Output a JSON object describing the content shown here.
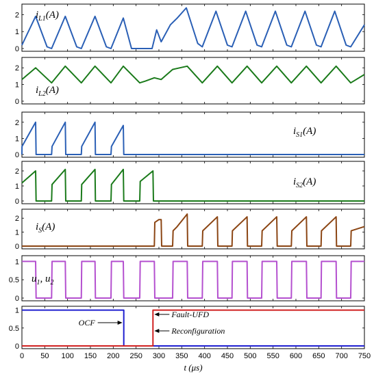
{
  "chart_data": {
    "type": "line",
    "xlabel": "t (μs)",
    "xlim": [
      0,
      750
    ],
    "x_ticks": [
      "0",
      "50",
      "100",
      "150",
      "200",
      "250",
      "300",
      "350",
      "400",
      "450",
      "500",
      "550",
      "600",
      "650",
      "700",
      "750"
    ],
    "colors": {
      "blue": "#2a5fb5",
      "green": "#1a7a1a",
      "brown": "#8b4513",
      "purple": "#b44fcf",
      "navy": "#1f1fd0",
      "red": "#d02020"
    },
    "panels": [
      {
        "label": "i_L1(A)",
        "label_main": "i",
        "label_sub": "L1",
        "label_suffix": "(A)",
        "ylim": [
          0,
          2.5
        ],
        "y_ticks": [
          0,
          1,
          2
        ],
        "series": [
          {
            "color": "blue",
            "x": [
              0,
              30,
              55,
              65,
              95,
              120,
              130,
              160,
              185,
              195,
              222,
              240,
              260,
              285,
              295,
              305,
              325,
              340,
              360,
              385,
              395,
              425,
              450,
              460,
              490,
              515,
              525,
              555,
              580,
              590,
              620,
              645,
              655,
              685,
              710,
              720,
              750
            ],
            "y": [
              0.2,
              1.9,
              0.1,
              0,
              1.9,
              0.1,
              0,
              1.9,
              0.1,
              0,
              1.8,
              0,
              0,
              0,
              1.1,
              0.4,
              1.4,
              1.8,
              2.4,
              0.3,
              0.1,
              2.2,
              0.2,
              0.1,
              2.2,
              0.2,
              0.1,
              2.2,
              0.2,
              0.1,
              2.2,
              0.2,
              0.1,
              2.2,
              0.2,
              0.1,
              1.4
            ]
          }
        ]
      },
      {
        "label": "i_L2(A)",
        "label_main": "i",
        "label_sub": "L2",
        "label_suffix": "(A)",
        "ylim": [
          0,
          2.5
        ],
        "y_ticks": [
          0,
          1,
          2
        ],
        "series": [
          {
            "color": "green",
            "x": [
              0,
              30,
              65,
              95,
              130,
              160,
              195,
              222,
              258,
              270,
              290,
              305,
              330,
              362,
              395,
              428,
              460,
              493,
              525,
              558,
              590,
              623,
              655,
              688,
              720,
              750
            ],
            "y": [
              1.3,
              2.0,
              1.1,
              2.1,
              1.1,
              2.1,
              1.1,
              2.1,
              1.1,
              1.2,
              1.4,
              1.3,
              1.9,
              2.1,
              1.1,
              2.1,
              1.1,
              2.1,
              1.1,
              2.1,
              1.1,
              2.1,
              1.1,
              2.1,
              1.1,
              1.6
            ]
          }
        ]
      },
      {
        "label": "i_S1(A)",
        "label_main": "i",
        "label_sub": "S1",
        "label_suffix": "(A)",
        "ylim": [
          0,
          2.5
        ],
        "y_ticks": [
          0,
          1,
          2
        ],
        "series": [
          {
            "color": "blue",
            "x": [
              0,
              0.1,
              30,
              31,
              65,
              66,
              95,
              96,
              130,
              131,
              160,
              161,
              195,
              196,
              222,
              223,
              750
            ],
            "y": [
              0,
              0.5,
              2.0,
              0,
              0,
              0.5,
              2.0,
              0,
              0,
              0.5,
              2.0,
              0,
              0,
              0.5,
              1.8,
              0,
              0
            ]
          }
        ]
      },
      {
        "label": "i_S2(A)",
        "label_main": "i",
        "label_sub": "S2",
        "label_suffix": "(A)",
        "ylim": [
          0,
          2.5
        ],
        "y_ticks": [
          0,
          1,
          2
        ],
        "series": [
          {
            "color": "green",
            "x": [
              0,
              30,
              31,
              65,
              66,
              95,
              96,
              130,
              131,
              160,
              161,
              195,
              196,
              222,
              223,
              258,
              259,
              287,
              288,
              750
            ],
            "y": [
              1.2,
              2.0,
              0,
              0,
              1.1,
              2.1,
              0,
              0,
              1.1,
              2.1,
              0,
              0,
              1.1,
              2.1,
              0,
              0,
              1.3,
              2.0,
              0,
              0
            ]
          }
        ]
      },
      {
        "label": "i_S(A)",
        "label_main": "i",
        "label_sub": "S",
        "label_suffix": "(A)",
        "ylim": [
          0,
          2.5
        ],
        "y_ticks": [
          0,
          1,
          2
        ],
        "series": [
          {
            "color": "brown",
            "x": [
              0,
              290,
              291,
              300,
              305,
              306,
              330,
              331,
              340,
              362,
              363,
              395,
              396,
              428,
              429,
              460,
              461,
              493,
              494,
              525,
              526,
              558,
              559,
              590,
              591,
              623,
              624,
              655,
              656,
              688,
              689,
              720,
              721,
              750
            ],
            "y": [
              0,
              0,
              1.7,
              1.9,
              1.9,
              0,
              0,
              1.1,
              1.4,
              2.3,
              0,
              0,
              1.1,
              2.1,
              0,
              0,
              1.1,
              2.1,
              0,
              0,
              1.1,
              2.1,
              0,
              0,
              1.1,
              2.1,
              0,
              0,
              1.1,
              2.1,
              0,
              0,
              1.1,
              1.4
            ]
          }
        ]
      },
      {
        "label": "u_1, u_2",
        "label_main": "u",
        "label_sub": "1",
        "label_suffix": ", u",
        "label_sub2": "2",
        "ylim": [
          0,
          1.1
        ],
        "y_ticks": [
          0,
          0.5,
          1
        ],
        "series": [
          {
            "color": "purple",
            "x": [
              0,
              30,
              31,
              65,
              66,
              95,
              96,
              130,
              131,
              160,
              161,
              195,
              196,
              222,
              223,
              258,
              259,
              290,
              291,
              330,
              331,
              362,
              363,
              395,
              396,
              428,
              429,
              460,
              461,
              493,
              494,
              525,
              526,
              558,
              559,
              590,
              591,
              623,
              624,
              655,
              656,
              688,
              689,
              720,
              721,
              750
            ],
            "y": [
              1,
              1,
              0,
              0,
              1,
              1,
              0,
              0,
              1,
              1,
              0,
              0,
              1,
              1,
              0,
              0,
              1,
              1,
              0,
              0,
              1,
              1,
              0,
              0,
              1,
              1,
              0,
              0,
              1,
              1,
              0,
              0,
              1,
              1,
              0,
              0,
              1,
              1,
              0,
              0,
              1,
              1,
              0,
              0,
              1,
              1
            ]
          }
        ]
      },
      {
        "label": "",
        "ylim": [
          0,
          1.05
        ],
        "y_ticks": [
          0,
          0.5,
          1
        ],
        "series": [
          {
            "color": "navy",
            "x": [
              0,
              223,
              223,
              750
            ],
            "y": [
              1,
              1,
              0,
              0
            ]
          },
          {
            "color": "red",
            "x": [
              0,
              287,
              287,
              750
            ],
            "y": [
              0,
              0,
              1,
              1
            ]
          }
        ],
        "annotations": [
          {
            "text": "OCF",
            "arrow_to": 223,
            "y": 0.65,
            "side": "left"
          },
          {
            "text": "Fault-UFD",
            "arrow_to": 287,
            "y": 0.88,
            "side": "right"
          },
          {
            "text": "Reconfiguration",
            "arrow_to": 287,
            "y": 0.42,
            "side": "right"
          }
        ]
      }
    ]
  }
}
